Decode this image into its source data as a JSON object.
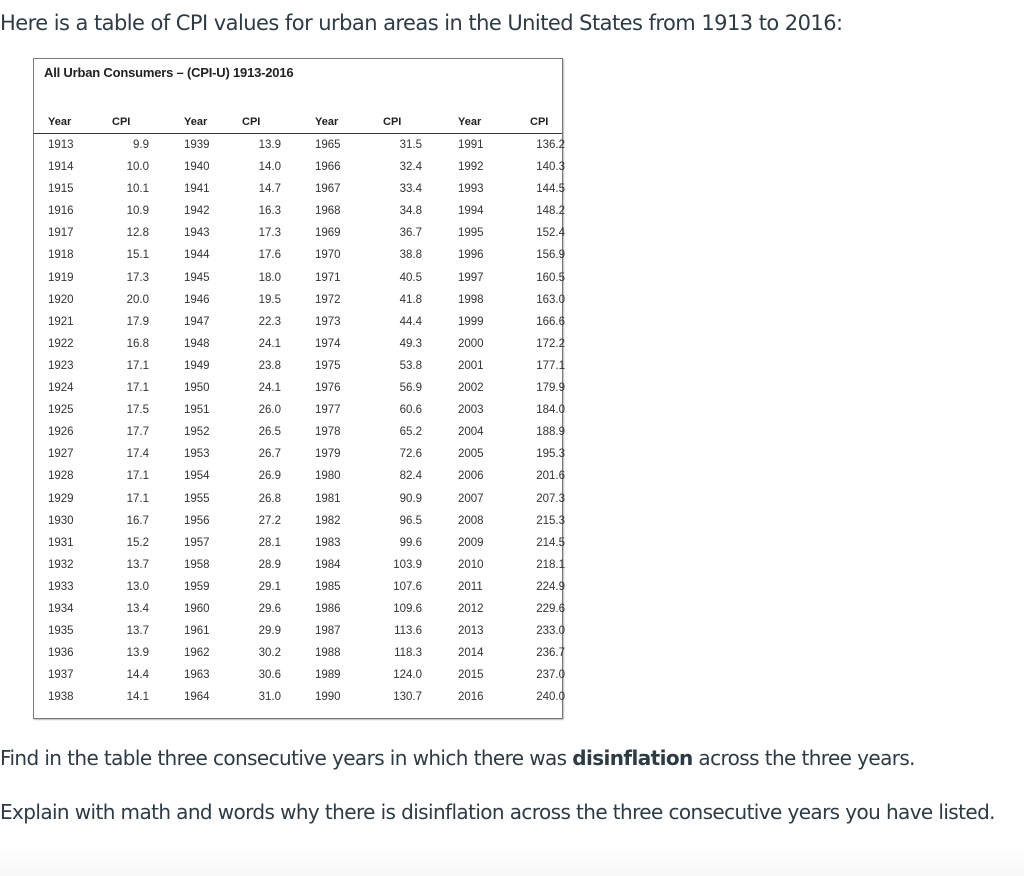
{
  "intro_text": "Here is a table of CPI values for urban areas in the United States from 1913 to 2016:",
  "table": {
    "title": "All Urban Consumers – (CPI-U) 1913-2016",
    "headers": [
      "Year",
      "CPI",
      "Year",
      "CPI",
      "Year",
      "CPI",
      "Year",
      "CPI"
    ],
    "columns": [
      {
        "years": [
          "1913",
          "1914",
          "1915",
          "1916",
          "1917",
          "1918",
          "1919",
          "1920",
          "1921",
          "1922",
          "1923",
          "1924",
          "1925",
          "1926",
          "1927",
          "1928",
          "1929",
          "1930",
          "1931",
          "1932",
          "1933",
          "1934",
          "1935",
          "1936",
          "1937",
          "1938"
        ],
        "cpi": [
          "9.9",
          "10.0",
          "10.1",
          "10.9",
          "12.8",
          "15.1",
          "17.3",
          "20.0",
          "17.9",
          "16.8",
          "17.1",
          "17.1",
          "17.5",
          "17.7",
          "17.4",
          "17.1",
          "17.1",
          "16.7",
          "15.2",
          "13.7",
          "13.0",
          "13.4",
          "13.7",
          "13.9",
          "14.4",
          "14.1"
        ]
      },
      {
        "years": [
          "1939",
          "1940",
          "1941",
          "1942",
          "1943",
          "1944",
          "1945",
          "1946",
          "1947",
          "1948",
          "1949",
          "1950",
          "1951",
          "1952",
          "1953",
          "1954",
          "1955",
          "1956",
          "1957",
          "1958",
          "1959",
          "1960",
          "1961",
          "1962",
          "1963",
          "1964"
        ],
        "cpi": [
          "13.9",
          "14.0",
          "14.7",
          "16.3",
          "17.3",
          "17.6",
          "18.0",
          "19.5",
          "22.3",
          "24.1",
          "23.8",
          "24.1",
          "26.0",
          "26.5",
          "26.7",
          "26.9",
          "26.8",
          "27.2",
          "28.1",
          "28.9",
          "29.1",
          "29.6",
          "29.9",
          "30.2",
          "30.6",
          "31.0"
        ]
      },
      {
        "years": [
          "1965",
          "1966",
          "1967",
          "1968",
          "1969",
          "1970",
          "1971",
          "1972",
          "1973",
          "1974",
          "1975",
          "1976",
          "1977",
          "1978",
          "1979",
          "1980",
          "1981",
          "1982",
          "1983",
          "1984",
          "1985",
          "1986",
          "1987",
          "1988",
          "1989",
          "1990"
        ],
        "cpi": [
          "31.5",
          "32.4",
          "33.4",
          "34.8",
          "36.7",
          "38.8",
          "40.5",
          "41.8",
          "44.4",
          "49.3",
          "53.8",
          "56.9",
          "60.6",
          "65.2",
          "72.6",
          "82.4",
          "90.9",
          "96.5",
          "99.6",
          "103.9",
          "107.6",
          "109.6",
          "113.6",
          "118.3",
          "124.0",
          "130.7"
        ]
      },
      {
        "years": [
          "1991",
          "1992",
          "1993",
          "1994",
          "1995",
          "1996",
          "1997",
          "1998",
          "1999",
          "2000",
          "2001",
          "2002",
          "2003",
          "2004",
          "2005",
          "2006",
          "2007",
          "2008",
          "2009",
          "2010",
          "2011",
          "2012",
          "2013",
          "2014",
          "2015",
          "2016"
        ],
        "cpi": [
          "136.2",
          "140.3",
          "144.5",
          "148.2",
          "152.4",
          "156.9",
          "160.5",
          "163.0",
          "166.6",
          "172.2",
          "177.1",
          "179.9",
          "184.0",
          "188.9",
          "195.3",
          "201.6",
          "207.3",
          "215.3",
          "214.5",
          "218.1",
          "224.9",
          "229.6",
          "233.0",
          "236.7",
          "237.0",
          "240.0"
        ]
      }
    ]
  },
  "question": {
    "line1_before": "Find in the table three consecutive years in which there was ",
    "line1_bold": "disinflation",
    "line1_after": " across the three years.",
    "line2": "Explain with math and words why there is disinflation across the three consecutive years you have listed."
  },
  "colors": {
    "body_text": "#2d3b45",
    "table_border": "#7a7a7a"
  }
}
